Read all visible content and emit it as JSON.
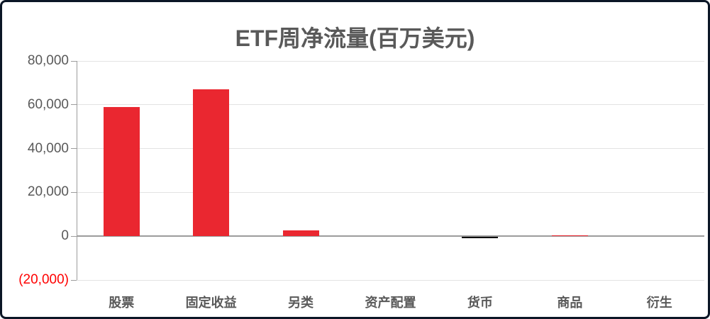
{
  "window": {
    "background_color": "#FFFFFF",
    "border_color": "#0B1626"
  },
  "chart_data": {
    "type": "bar",
    "title": "ETF周净流量(百万美元)",
    "categories": [
      "股票",
      "固定收益",
      "另类",
      "资产配置",
      "货币",
      "商品",
      "衍生"
    ],
    "values": [
      59000,
      67000,
      2500,
      0,
      -600,
      500,
      0
    ],
    "series": [
      {
        "name": "周净流量",
        "values": [
          59000,
          67000,
          2500,
          0,
          -600,
          500,
          0
        ]
      }
    ],
    "xlabel": "",
    "ylabel": "",
    "ylim": [
      -20000,
      80000
    ],
    "ytick_step": 20000,
    "yticks": [
      {
        "value": 80000,
        "label": "80,000",
        "color": "#595959"
      },
      {
        "value": 60000,
        "label": "60,000",
        "color": "#595959"
      },
      {
        "value": 40000,
        "label": "40,000",
        "color": "#595959"
      },
      {
        "value": 20000,
        "label": "20,000",
        "color": "#595959"
      },
      {
        "value": 0,
        "label": "0",
        "color": "#595959"
      },
      {
        "value": -20000,
        "label": "(20,000)",
        "color": "#FF0000"
      }
    ],
    "grid": true,
    "legend_position": "none",
    "colors": {
      "bar_default": "#EA2730",
      "bar_negative_currency": "#000000",
      "title_text": "#595959",
      "axis_text": "#595959",
      "category_text": "#595959",
      "negative_tick_text": "#FF0000",
      "gridline": "#E3E3E3",
      "axis_line": "#9C9C9C"
    },
    "bar_colors": [
      "#EA2730",
      "#EA2730",
      "#EA2730",
      "#EA2730",
      "#000000",
      "#EA2730",
      "#EA2730"
    ]
  }
}
